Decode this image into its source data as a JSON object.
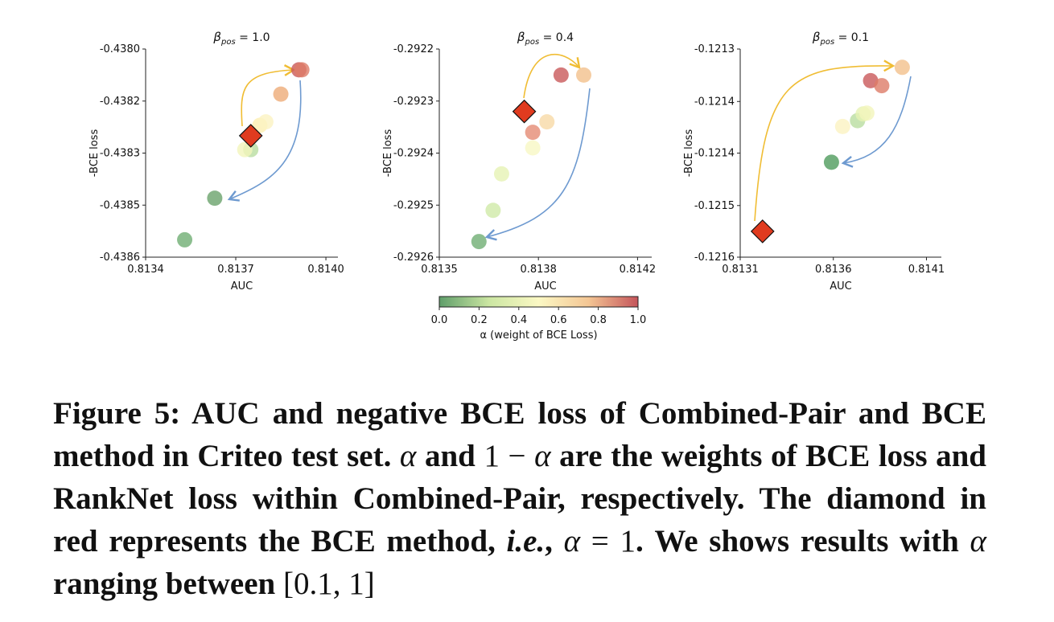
{
  "chart_data": [
    {
      "type": "scatter",
      "title": {
        "symbol": "β",
        "sub": "pos",
        "rest": " = 1.0"
      },
      "xlabel": "AUC",
      "ylabel": "-BCE loss",
      "xlim": [
        0.8134,
        0.81404
      ],
      "xticks": [
        0.8134,
        0.8137,
        {
          "value": 0.814,
          "label": "0.8140"
        }
      ],
      "ylim": [
        -0.4386,
        -0.438
      ],
      "yticks": [
        {
          "value": -0.438,
          "label": "-0.4380"
        },
        {
          "value": -0.43815,
          "label": "-0.4382"
        },
        -0.4383,
        {
          "value": -0.43845,
          "label": "-0.4385"
        },
        -0.4386
      ],
      "points": {
        "x": [
          0.81353,
          0.81363,
          0.81375,
          0.81373,
          0.81378,
          0.8138,
          0.81385,
          0.81391,
          0.81392
        ],
        "y": [
          -0.43855,
          -0.43843,
          -0.43829,
          -0.43829,
          -0.43822,
          -0.43821,
          -0.43813,
          -0.43806,
          -0.43806
        ],
        "colors": [
          "#6fae73",
          "#6aa36c",
          "#b9dda0",
          "#f3f5bc",
          "#fcefb2",
          "#fbf3c2",
          "#eeab78",
          "#c9595a",
          "#dd7c68"
        ]
      },
      "diamond": {
        "x": 0.81375,
        "y": -0.43825,
        "color": "#e03b1f"
      }
    },
    {
      "type": "scatter",
      "title": {
        "symbol": "β",
        "sub": "pos",
        "rest": " = 0.4"
      },
      "xlabel": "AUC",
      "ylabel": "-BCE loss",
      "xlim": [
        0.8135,
        0.81425
      ],
      "xticks": [
        0.8135,
        {
          "value": 0.81385,
          "label": "0.8138"
        },
        0.8142
      ],
      "ylim": [
        -0.2926,
        -0.2922
      ],
      "yticks": [
        -0.2922,
        -0.2923,
        -0.2924,
        -0.2925,
        -0.2926
      ],
      "points": {
        "x": [
          0.81364,
          0.81369,
          0.81372,
          0.81383,
          0.81383,
          0.81388,
          0.81393,
          0.81401
        ],
        "y": [
          -0.29257,
          -0.29251,
          -0.29244,
          -0.29239,
          -0.29236,
          -0.29234,
          -0.29225,
          -0.29225
        ],
        "colors": [
          "#6fae73",
          "#cfeaa8",
          "#e6f3b4",
          "#f7f7c4",
          "#e58b74",
          "#f7d9a6",
          "#c9595a",
          "#f3c08c"
        ]
      },
      "diamond": {
        "x": 0.8138,
        "y": -0.29232,
        "color": "#e03b1f"
      }
    },
    {
      "type": "scatter",
      "title": {
        "symbol": "β",
        "sub": "pos",
        "rest": " = 0.1"
      },
      "xlabel": "AUC",
      "ylabel": "-BCE loss",
      "xlim": [
        0.8131,
        0.81418
      ],
      "xticks": [
        0.8131,
        0.8136,
        0.8141
      ],
      "ylim": [
        -0.12155,
        -0.1213
      ],
      "yticks": [
        -0.1213,
        {
          "value": -0.121363,
          "label": "-0.1214"
        },
        {
          "value": -0.121425,
          "label": "-0.1214"
        },
        {
          "value": -0.121488,
          "label": "-0.1215"
        },
        {
          "value": -0.12155,
          "label": "-0.1216"
        }
      ],
      "points": {
        "x": [
          0.81359,
          0.81365,
          0.81373,
          0.81376,
          0.81378,
          0.8138,
          0.81386,
          0.81397
        ],
        "y": [
          -0.121436,
          -0.121393,
          -0.121386,
          -0.121378,
          -0.121377,
          -0.121338,
          -0.121344,
          -0.121322
        ],
        "colors": [
          "#4f9b5c",
          "#fbf3c2",
          "#b9dda0",
          "#e6f3b4",
          "#f3f5bc",
          "#c9595a",
          "#dd7c68",
          "#f3c08c"
        ]
      },
      "diamond": {
        "x": 0.81322,
        "y": -0.121519,
        "color": "#e03b1f"
      }
    }
  ],
  "colorbar": {
    "label": "α (weight of BCE Loss)",
    "range": [
      0,
      1
    ],
    "ticks": [
      {
        "value": 0,
        "label": "0.0"
      },
      0.2,
      0.4,
      0.6,
      0.8,
      {
        "value": 1,
        "label": "1.0"
      }
    ],
    "colors": [
      "#5f9e6a",
      "#cbe6a2",
      "#fbf8c4",
      "#f4c694",
      "#c4545a"
    ]
  },
  "caption": [
    "Figure 5: AUC and negative BCE loss of Combined-Pair and BCE method in Criteo test set. ",
    "α",
    " and ",
    "1 − ",
    "α",
    " are the weights of BCE loss and RankNet loss within Combined-Pair, respec­tively. The diamond in red represents the BCE method, ",
    "i.e.",
    ", ",
    "α",
    " = 1",
    ". We shows results with ",
    "α",
    " ranging between ",
    "[0.1, 1]"
  ]
}
